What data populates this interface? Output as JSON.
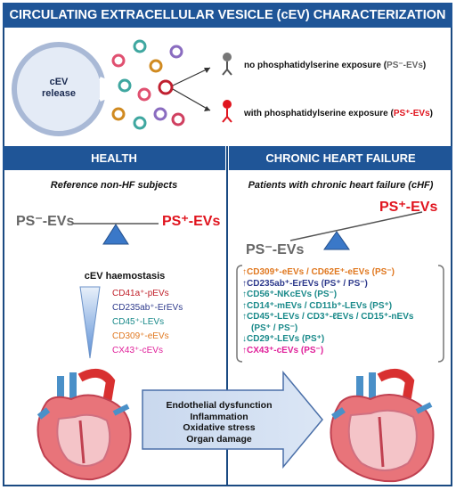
{
  "title": "CIRCULATING EXTRACELLULAR VESICLE (cEV) CHARACTERIZATION",
  "cell_label": "cEV release",
  "ps_neg_label": {
    "text": "no phosphatidylserine  exposure (",
    "tag": "PS⁻-EVs",
    "end": ")"
  },
  "ps_pos_label": {
    "text": "with phosphatidylserine  exposure (",
    "tag": "PS⁺-EVs",
    "end": ")"
  },
  "health": {
    "header": "HEALTH",
    "subtitle": "Reference non-HF subjects",
    "ps_neg": "PS⁻-EVs",
    "ps_pos": "PS⁺-EVs",
    "haemostasis_title": "cEV haemostasis",
    "items": [
      {
        "text": "CD41a⁺-pEVs",
        "color": "#c0202a"
      },
      {
        "text": "CD235ab⁺-ErEVs",
        "color": "#2e3a8c"
      },
      {
        "text": "CD45⁺-LEVs",
        "color": "#1a8a8a"
      },
      {
        "text": "CD309⁺-eEVs",
        "color": "#e07820"
      },
      {
        "text": "CX43⁺-cEVs",
        "color": "#e0209a"
      }
    ]
  },
  "chf": {
    "header": "CHRONIC HEART FAILURE",
    "subtitle": "Patients with chronic heart failure (cHF)",
    "ps_pos": "PS⁺-EVs",
    "ps_neg": "PS⁻-EVs",
    "items": [
      {
        "text": "↑CD309⁺-eEVs / CD62E⁺-eEVs (PS⁻)",
        "color": "#e07820"
      },
      {
        "text": "↑CD235ab⁺-ErEVs (PS⁺ / PS⁻)",
        "color": "#2e3a8c"
      },
      {
        "text": "↑CD56⁺-NKcEVs (PS⁻)",
        "color": "#1a8a8a"
      },
      {
        "text": "↑CD14⁺-mEVs / CD11b⁺-LEVs (PS⁺)",
        "color": "#1a8a8a"
      },
      {
        "text": "↑CD45⁺-LEVs / CD3⁺-ℓEVs / CD15⁺-nEVs",
        "color": "#1a8a8a"
      },
      {
        "text": "  (PS⁺ / PS⁻)",
        "color": "#1a8a8a"
      },
      {
        "text": "↓CD29⁺-LEVs (PS⁺)",
        "color": "#1a8a8a"
      },
      {
        "text": "↑CX43⁺-cEVs (PS⁻)",
        "color": "#e0209a"
      }
    ]
  },
  "outcomes": [
    "Endothelial dysfunction",
    "Inflammation",
    "Oxidative stress",
    "Organ damage"
  ],
  "colors": {
    "header_blue": "#1f5597",
    "ps_red": "#e0141e",
    "ps_gray": "#666666",
    "fulcrum": "#3a78c8"
  }
}
